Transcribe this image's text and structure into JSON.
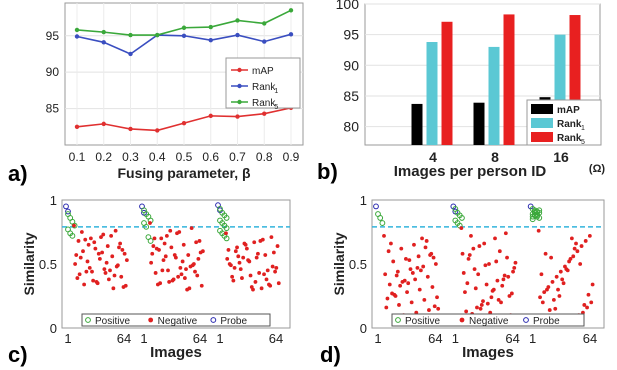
{
  "panel_labels": [
    "a)",
    "b)",
    "c)",
    "d)"
  ],
  "chart_data": [
    {
      "type": "line",
      "panel": "a)",
      "xlabel": "Fusing parameter, β",
      "ylabel": "",
      "x": [
        0.1,
        0.2,
        0.3,
        0.4,
        0.5,
        0.6,
        0.7,
        0.8,
        0.9
      ],
      "x_ticks": [
        "0.1",
        "0.2",
        "0.3",
        "0.4",
        "0.5",
        "0.6",
        "0.7",
        "0.8",
        "0.9"
      ],
      "ylim": [
        80,
        99.5
      ],
      "y_ticks": [
        85,
        90,
        95
      ],
      "grid": true,
      "legend_position": "center-right",
      "series": [
        {
          "name": "mAP",
          "color": "#e03030",
          "values": [
            82.5,
            82.9,
            82.2,
            82.0,
            83.0,
            84.0,
            83.9,
            84.3,
            85.1
          ]
        },
        {
          "name": "Rank",
          "subscript": "1",
          "color": "#3a4ec0",
          "values": [
            94.9,
            94.1,
            92.5,
            95.1,
            95.0,
            94.4,
            95.1,
            94.2,
            95.2
          ]
        },
        {
          "name": "Rank",
          "subscript": "5",
          "color": "#3aa83a",
          "values": [
            95.8,
            95.5,
            95.1,
            95.1,
            96.1,
            96.2,
            97.1,
            96.7,
            98.5
          ]
        }
      ]
    },
    {
      "type": "bar",
      "panel": "b)",
      "xlabel": "Images per person ID",
      "annotation": "(Ω)",
      "categories": [
        "4",
        "8",
        "16"
      ],
      "ylim": [
        77,
        100
      ],
      "y_ticks": [
        80,
        85,
        90,
        95,
        100
      ],
      "grid": true,
      "legend_position": "bottom-right",
      "series": [
        {
          "name": "mAP",
          "color": "#000000",
          "values": [
            83.7,
            83.9,
            84.8
          ]
        },
        {
          "name": "Rank",
          "subscript": "1",
          "color": "#5bc8d4",
          "values": [
            93.8,
            93.0,
            95.0
          ]
        },
        {
          "name": "Rank",
          "subscript": "5",
          "color": "#e82020",
          "values": [
            97.1,
            98.3,
            98.2
          ]
        }
      ]
    },
    {
      "type": "scatter",
      "panel": "c)",
      "xlabel": "Images",
      "ylabel": "Similarity",
      "x_ticks": [
        "1",
        "64",
        "1",
        "64",
        "1",
        "64"
      ],
      "y_ticks": [
        "0",
        "0.5",
        "1"
      ],
      "ylim": [
        0,
        1
      ],
      "threshold": 0.79,
      "threshold_color": "#33b4dc",
      "legend_position": "bottom",
      "groups": [
        {
          "probe": [
            0.95,
            0.91
          ],
          "positive": [
            0.89,
            0.86,
            0.83,
            0.8,
            0.77,
            0.74,
            0.72
          ],
          "negative": [
            0.8,
            0.76,
            0.73,
            0.7,
            0.68,
            0.66,
            0.64,
            0.62,
            0.6,
            0.58,
            0.56,
            0.54,
            0.52,
            0.5,
            0.48,
            0.46,
            0.44,
            0.42,
            0.4,
            0.38,
            0.36,
            0.34,
            0.33,
            0.31,
            0.71,
            0.65,
            0.57,
            0.49,
            0.43,
            0.37,
            0.55,
            0.61,
            0.45,
            0.35,
            0.69,
            0.53,
            0.41,
            0.59,
            0.47,
            0.39,
            0.63,
            0.51,
            0.67,
            0.75,
            0.32,
            0.72,
            0.58,
            0.44
          ]
        },
        {
          "probe": [
            0.95,
            0.9
          ],
          "positive": [
            0.92,
            0.89,
            0.87,
            0.84,
            0.82,
            0.79,
            0.71,
            0.68
          ],
          "negative": [
            0.82,
            0.78,
            0.75,
            0.72,
            0.7,
            0.67,
            0.65,
            0.63,
            0.61,
            0.59,
            0.57,
            0.55,
            0.53,
            0.51,
            0.49,
            0.47,
            0.45,
            0.43,
            0.41,
            0.39,
            0.37,
            0.35,
            0.33,
            0.31,
            0.74,
            0.66,
            0.58,
            0.5,
            0.42,
            0.36,
            0.62,
            0.54,
            0.46,
            0.38,
            0.7,
            0.6,
            0.48,
            0.4,
            0.56,
            0.64,
            0.44,
            0.52,
            0.76,
            0.34,
            0.68,
            0.3,
            0.57,
            0.45
          ]
        },
        {
          "probe": [
            0.96,
            0.92
          ],
          "positive": [
            0.93,
            0.9,
            0.88,
            0.86,
            0.84,
            0.82,
            0.8,
            0.78,
            0.76,
            0.74,
            0.72,
            0.7
          ],
          "negative": [
            0.74,
            0.71,
            0.69,
            0.67,
            0.65,
            0.63,
            0.61,
            0.59,
            0.57,
            0.55,
            0.53,
            0.51,
            0.49,
            0.47,
            0.45,
            0.43,
            0.41,
            0.39,
            0.37,
            0.35,
            0.33,
            0.31,
            0.3,
            0.66,
            0.6,
            0.54,
            0.48,
            0.42,
            0.36,
            0.62,
            0.56,
            0.5,
            0.44,
            0.38,
            0.58,
            0.52,
            0.46,
            0.4,
            0.64,
            0.34,
            0.68,
            0.32,
            0.55,
            0.47
          ]
        }
      ],
      "legend": [
        "Positive",
        "Negative",
        "Probe"
      ]
    },
    {
      "type": "scatter",
      "panel": "d)",
      "xlabel": "Images",
      "ylabel": "Similarity",
      "x_ticks": [
        "1",
        "64",
        "1",
        "64",
        "1",
        "64"
      ],
      "y_ticks": [
        "0",
        "0.5",
        "1"
      ],
      "ylim": [
        0,
        1
      ],
      "threshold": 0.79,
      "threshold_color": "#33b4dc",
      "legend_position": "bottom",
      "groups": [
        {
          "probe": [
            0.95
          ],
          "positive": [
            0.89,
            0.86,
            0.82
          ],
          "negative": [
            0.72,
            0.68,
            0.65,
            0.62,
            0.6,
            0.58,
            0.56,
            0.54,
            0.52,
            0.5,
            0.48,
            0.46,
            0.44,
            0.42,
            0.4,
            0.38,
            0.36,
            0.34,
            0.32,
            0.3,
            0.28,
            0.26,
            0.24,
            0.22,
            0.2,
            0.18,
            0.16,
            0.14,
            0.12,
            0.1,
            0.66,
            0.55,
            0.45,
            0.35,
            0.25,
            0.15,
            0.63,
            0.43,
            0.33,
            0.23,
            0.57,
            0.47,
            0.37,
            0.27,
            0.17,
            0.7,
            0.53,
            0.41
          ]
        },
        {
          "probe": [
            0.95,
            0.91
          ],
          "positive": [
            0.93,
            0.9,
            0.88,
            0.86,
            0.84,
            0.82,
            0.8
          ],
          "negative": [
            0.78,
            0.74,
            0.7,
            0.66,
            0.62,
            0.58,
            0.55,
            0.52,
            0.49,
            0.46,
            0.43,
            0.4,
            0.37,
            0.34,
            0.31,
            0.28,
            0.25,
            0.22,
            0.19,
            0.16,
            0.13,
            0.1,
            0.6,
            0.5,
            0.42,
            0.35,
            0.27,
            0.2,
            0.12,
            0.64,
            0.54,
            0.44,
            0.33,
            0.24,
            0.15,
            0.57,
            0.47,
            0.38,
            0.29,
            0.18,
            0.72,
            0.51,
            0.41,
            0.3,
            0.21,
            0.11
          ]
        },
        {
          "probe": [
            0.95
          ],
          "positive": [
            0.93,
            0.92,
            0.91,
            0.9,
            0.89,
            0.88,
            0.87,
            0.86,
            0.85,
            0.9,
            0.88,
            0.92,
            0.87,
            0.91,
            0.89
          ],
          "negative": [
            0.76,
            0.72,
            0.68,
            0.64,
            0.6,
            0.56,
            0.52,
            0.48,
            0.44,
            0.4,
            0.36,
            0.32,
            0.28,
            0.24,
            0.2,
            0.16,
            0.12,
            0.1,
            0.62,
            0.54,
            0.46,
            0.38,
            0.3,
            0.22,
            0.14,
            0.58,
            0.42,
            0.34,
            0.26,
            0.18,
            0.5,
            0.66,
            0.7,
            0.45,
            0.35,
            0.25,
            0.15,
            0.55,
            0.3,
            0.2
          ]
        }
      ],
      "legend": [
        "Positive",
        "Negative",
        "Probe"
      ]
    }
  ]
}
